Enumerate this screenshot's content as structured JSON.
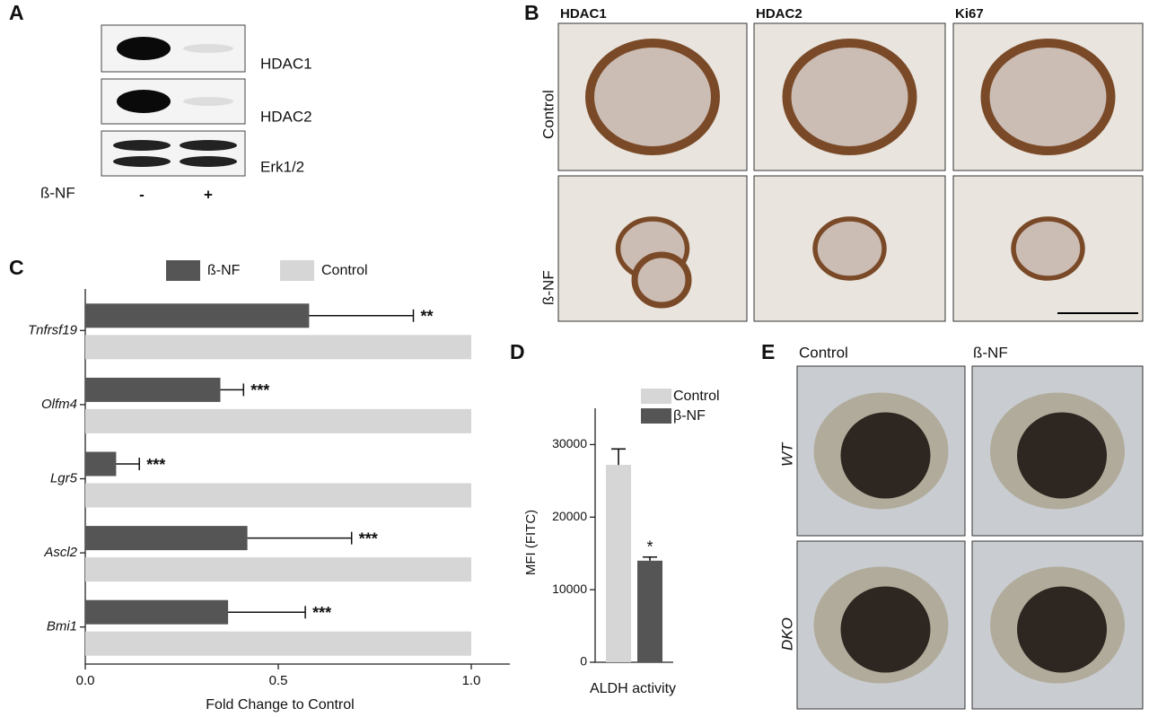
{
  "panel_labels": [
    "A",
    "B",
    "C",
    "D",
    "E"
  ],
  "panel_a": {
    "blots": [
      "HDAC1",
      "HDAC2",
      "Erk1/2"
    ],
    "treatment_label": "ß-NF",
    "lanes": [
      "-",
      "+"
    ]
  },
  "panel_b": {
    "columns": [
      "HDAC1",
      "HDAC2",
      "Ki67"
    ],
    "rows": [
      "Control",
      "ß-NF"
    ]
  },
  "panel_e": {
    "columns": [
      "Control",
      "ß-NF"
    ],
    "rows": [
      "WT",
      "DKO"
    ]
  },
  "chart_data": [
    {
      "type": "hbar",
      "categories": [
        "Tnfrsf19",
        "Olfm4",
        "Lgr5",
        "Ascl2",
        "Bmi1"
      ],
      "series": [
        {
          "name": "ß-NF",
          "color": "#555555",
          "values": [
            0.58,
            0.35,
            0.08,
            0.42,
            0.37
          ],
          "errors": [
            0.27,
            0.06,
            0.06,
            0.27,
            0.2
          ],
          "annotations": [
            "**",
            "***",
            "***",
            "***",
            "***"
          ]
        },
        {
          "name": "Control",
          "color": "#d6d6d6",
          "values": [
            1,
            1,
            1,
            1,
            1
          ]
        }
      ],
      "xlabel": "Fold Change to Control",
      "xlim": [
        0,
        1.1
      ],
      "xticks": [
        {
          "value": 0,
          "label": "0.0"
        },
        0.5,
        {
          "value": 1,
          "label": "1.0"
        }
      ],
      "legend": "top"
    },
    {
      "type": "bar",
      "series": [
        {
          "name": "Control",
          "color": "#d6d6d6",
          "values": [
            27200
          ],
          "errors": [
            2200
          ]
        },
        {
          "name": "β-NF",
          "color": "#555555",
          "values": [
            14000
          ],
          "errors": [
            500
          ],
          "annotations": [
            "*"
          ]
        }
      ],
      "xlabel": "ALDH activity",
      "ylabel": "MFI (FITC)",
      "ylim": [
        0,
        35000
      ],
      "yticks": [
        0,
        10000,
        20000,
        30000
      ],
      "legend": "upper right"
    }
  ]
}
